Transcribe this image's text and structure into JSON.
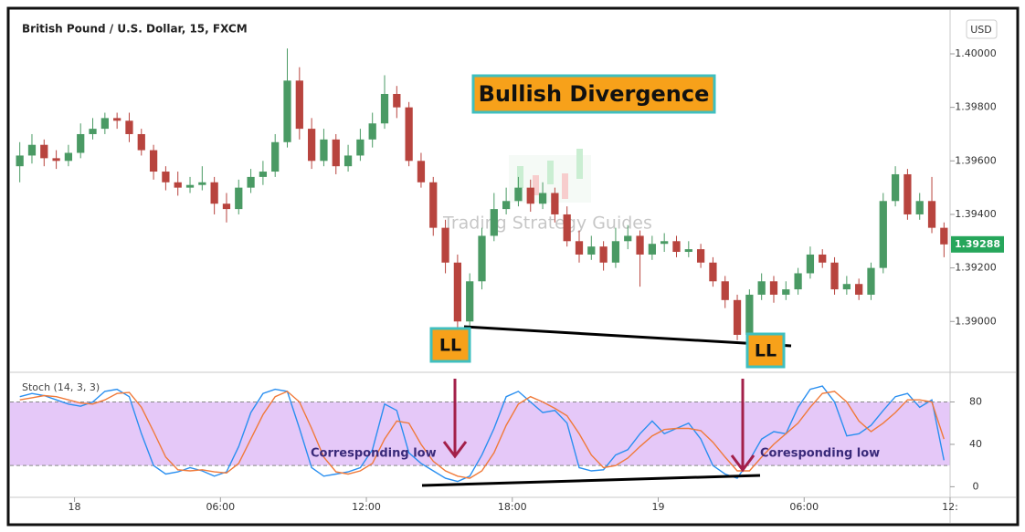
{
  "chart_data": [
    {
      "type": "candlestick",
      "title": "British Pound / U.S. Dollar, 15, FXCM",
      "currency": "USD",
      "annotations": [
        "Bullish Divergence",
        "LL",
        "LL",
        "Trading Strategy Guides"
      ],
      "xlim": [
        0,
        77
      ],
      "xticks": [
        {
          "value": 5,
          "label": "18"
        },
        {
          "value": 17,
          "label": "06:00"
        },
        {
          "value": 29,
          "label": "12:00"
        },
        {
          "value": 41,
          "label": "18:00"
        },
        {
          "value": 53,
          "label": "19"
        },
        {
          "value": 65,
          "label": "06:00"
        },
        {
          "value": 77,
          "label": "12:"
        }
      ],
      "ylim": [
        1.3881,
        1.4015
      ],
      "yticks": [
        {
          "value": 1.39,
          "label": "1.39000"
        },
        {
          "value": 1.392,
          "label": "1.39200"
        },
        {
          "value": 1.394,
          "label": "1.39400"
        },
        {
          "value": 1.396,
          "label": "1.39600"
        },
        {
          "value": 1.398,
          "label": "1.39800"
        },
        {
          "value": 1.4,
          "label": "1.40000"
        }
      ],
      "up_color": "#4a9a64",
      "down_color": "#b8443e",
      "open": [
        1.3958,
        1.3962,
        1.3966,
        1.3961,
        1.396,
        1.3963,
        1.397,
        1.3972,
        1.3976,
        1.3975,
        1.397,
        1.3964,
        1.3956,
        1.3952,
        1.395,
        1.3951,
        1.3952,
        1.3944,
        1.3942,
        1.395,
        1.3954,
        1.3956,
        1.3967,
        1.399,
        1.3972,
        1.396,
        1.3968,
        1.3958,
        1.3962,
        1.3968,
        1.3974,
        1.3985,
        1.398,
        1.396,
        1.3952,
        1.3935,
        1.3922,
        1.39,
        1.3915,
        1.3932,
        1.3942,
        1.3945,
        1.395,
        1.3944,
        1.3948,
        1.394,
        1.393,
        1.3925,
        1.3928,
        1.3922,
        1.393,
        1.3932,
        1.3925,
        1.3929,
        1.393,
        1.3926,
        1.3927,
        1.3922,
        1.3915,
        1.3908,
        1.3895,
        1.391,
        1.3915,
        1.391,
        1.3912,
        1.3918,
        1.3925,
        1.3922,
        1.3912,
        1.3914,
        1.391,
        1.392,
        1.3945,
        1.3955,
        1.394,
        1.3945,
        1.3935
      ],
      "high": [
        1.3967,
        1.397,
        1.3968,
        1.3964,
        1.3966,
        1.3974,
        1.3976,
        1.3978,
        1.3978,
        1.3978,
        1.3972,
        1.3966,
        1.3958,
        1.3956,
        1.3954,
        1.3958,
        1.3954,
        1.3948,
        1.3953,
        1.3957,
        1.396,
        1.397,
        1.4002,
        1.3995,
        1.3976,
        1.3972,
        1.397,
        1.3966,
        1.3972,
        1.3978,
        1.3992,
        1.3988,
        1.3982,
        1.3963,
        1.3954,
        1.3938,
        1.3925,
        1.3918,
        1.3935,
        1.3948,
        1.395,
        1.3954,
        1.3953,
        1.3952,
        1.395,
        1.3943,
        1.3934,
        1.3932,
        1.393,
        1.3935,
        1.3936,
        1.3934,
        1.3932,
        1.3933,
        1.3932,
        1.393,
        1.3929,
        1.3924,
        1.3917,
        1.391,
        1.3912,
        1.3918,
        1.3917,
        1.3915,
        1.392,
        1.3928,
        1.3927,
        1.3924,
        1.3917,
        1.3916,
        1.3922,
        1.3948,
        1.3958,
        1.3957,
        1.3948,
        1.3954,
        1.3937
      ],
      "low": [
        1.3952,
        1.3959,
        1.3958,
        1.3957,
        1.3958,
        1.3961,
        1.3968,
        1.397,
        1.3972,
        1.3967,
        1.3962,
        1.3953,
        1.3949,
        1.3947,
        1.3948,
        1.3949,
        1.394,
        1.3937,
        1.394,
        1.3948,
        1.3951,
        1.3954,
        1.3965,
        1.3968,
        1.3957,
        1.3958,
        1.3955,
        1.3956,
        1.396,
        1.3965,
        1.3972,
        1.3976,
        1.3958,
        1.395,
        1.3932,
        1.3918,
        1.3897,
        1.3898,
        1.3912,
        1.393,
        1.394,
        1.3943,
        1.3941,
        1.3942,
        1.3937,
        1.3928,
        1.3922,
        1.3923,
        1.3919,
        1.392,
        1.3927,
        1.3913,
        1.3923,
        1.3926,
        1.3924,
        1.3924,
        1.392,
        1.3913,
        1.3905,
        1.3893,
        1.3894,
        1.3908,
        1.3907,
        1.3908,
        1.391,
        1.3916,
        1.392,
        1.391,
        1.391,
        1.3908,
        1.3908,
        1.3918,
        1.3943,
        1.3938,
        1.3938,
        1.3933,
        1.3924
      ],
      "close": [
        1.3962,
        1.3966,
        1.3961,
        1.396,
        1.3963,
        1.397,
        1.3972,
        1.3976,
        1.3975,
        1.397,
        1.3964,
        1.3956,
        1.3952,
        1.395,
        1.3951,
        1.3952,
        1.3944,
        1.3942,
        1.395,
        1.3954,
        1.3956,
        1.3967,
        1.399,
        1.3972,
        1.396,
        1.3968,
        1.3958,
        1.3962,
        1.3968,
        1.3974,
        1.3985,
        1.398,
        1.396,
        1.3952,
        1.3935,
        1.3922,
        1.39,
        1.3915,
        1.3932,
        1.3942,
        1.3945,
        1.395,
        1.3944,
        1.3948,
        1.394,
        1.393,
        1.3925,
        1.3928,
        1.3922,
        1.393,
        1.3932,
        1.3925,
        1.3929,
        1.393,
        1.3926,
        1.3927,
        1.3922,
        1.3915,
        1.3908,
        1.3895,
        1.391,
        1.3915,
        1.391,
        1.3912,
        1.3918,
        1.3925,
        1.3922,
        1.3912,
        1.3914,
        1.391,
        1.392,
        1.3945,
        1.3955,
        1.394,
        1.3945,
        1.3935,
        1.39288
      ]
    },
    {
      "type": "line",
      "title": "Stoch (14, 3, 3)",
      "annotations": [
        "Corresponding low",
        "Coresponding low"
      ],
      "xlim": [
        0,
        77
      ],
      "ylim": [
        -10,
        108
      ],
      "yticks": [
        0,
        40,
        80
      ],
      "band": [
        20,
        80
      ],
      "band_color": "#e5c8f8",
      "series": [
        {
          "color": "#2a8ff0",
          "values": [
            85,
            88,
            86,
            82,
            78,
            76,
            80,
            90,
            92,
            85,
            50,
            20,
            12,
            14,
            18,
            15,
            10,
            14,
            38,
            70,
            88,
            92,
            90,
            55,
            18,
            10,
            12,
            14,
            18,
            35,
            78,
            72,
            32,
            22,
            15,
            8,
            5,
            10,
            30,
            55,
            85,
            90,
            80,
            70,
            72,
            60,
            18,
            15,
            16,
            30,
            35,
            50,
            62,
            50,
            55,
            60,
            45,
            20,
            12,
            8,
            25,
            45,
            52,
            50,
            75,
            92,
            95,
            80,
            48,
            50,
            58,
            72,
            85,
            88,
            75,
            82,
            25
          ]
        },
        {
          "color": "#f07a3a",
          "values": [
            82,
            84,
            86,
            85,
            82,
            79,
            78,
            82,
            88,
            89,
            75,
            52,
            28,
            16,
            15,
            16,
            14,
            13,
            22,
            45,
            68,
            85,
            90,
            80,
            55,
            28,
            14,
            12,
            15,
            22,
            45,
            62,
            60,
            40,
            24,
            15,
            10,
            8,
            15,
            32,
            58,
            78,
            85,
            80,
            74,
            67,
            50,
            30,
            18,
            20,
            27,
            38,
            48,
            54,
            55,
            55,
            53,
            42,
            28,
            15,
            15,
            28,
            40,
            50,
            60,
            75,
            88,
            90,
            80,
            62,
            52,
            60,
            70,
            82,
            82,
            80,
            45
          ]
        }
      ]
    }
  ]
}
